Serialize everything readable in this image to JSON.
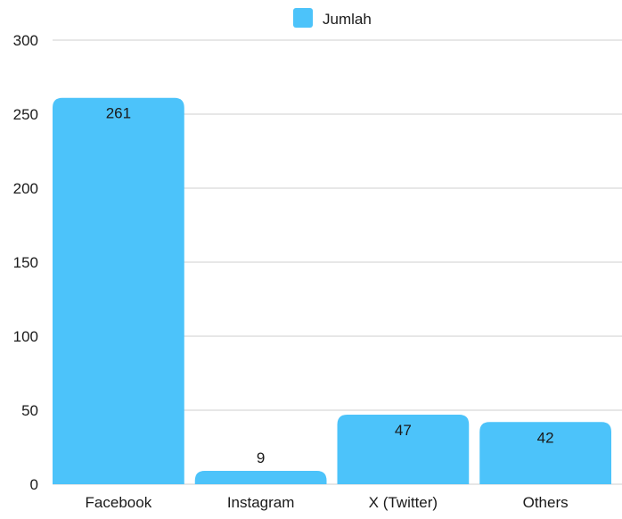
{
  "chart_data": {
    "type": "bar",
    "categories": [
      "Facebook",
      "Instagram",
      "X (Twitter)",
      "Others"
    ],
    "series": [
      {
        "name": "Jumlah",
        "values": [
          261,
          9,
          47,
          42
        ],
        "color": "#4cc3fa"
      }
    ],
    "ylim": [
      0,
      300
    ],
    "yticks": [
      0,
      50,
      100,
      150,
      200,
      250,
      300
    ],
    "grid": true,
    "legend_position": "top-center",
    "data_labels": true
  }
}
